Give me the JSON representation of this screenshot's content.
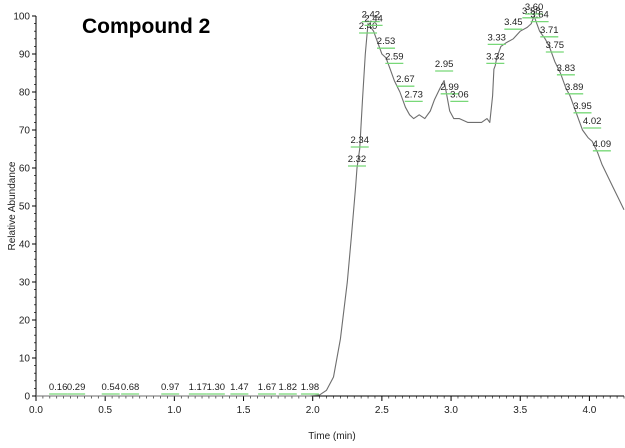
{
  "chart_data": {
    "type": "line",
    "title": "Compound 2",
    "xlabel": "Time (min)",
    "ylabel": "Relative Abundance",
    "xlim": [
      0,
      4.25
    ],
    "ylim": [
      0,
      100
    ],
    "x_ticks": [
      "0.0",
      "0.5",
      "1.0",
      "1.5",
      "2.0",
      "2.5",
      "3.0",
      "3.5",
      "4.0"
    ],
    "y_ticks": [
      "0",
      "10",
      "20",
      "30",
      "40",
      "50",
      "60",
      "70",
      "80",
      "90",
      "100"
    ],
    "grid": false,
    "legend": false,
    "series": [
      {
        "color": "#6e6e6e",
        "points": [
          [
            0,
            0
          ],
          [
            0.16,
            0
          ],
          [
            0.29,
            0
          ],
          [
            0.54,
            0
          ],
          [
            0.68,
            0
          ],
          [
            0.97,
            0
          ],
          [
            1.17,
            0
          ],
          [
            1.3,
            0
          ],
          [
            1.47,
            0
          ],
          [
            1.67,
            0
          ],
          [
            1.82,
            0
          ],
          [
            1.98,
            0
          ],
          [
            2.05,
            0.3
          ],
          [
            2.1,
            1.5
          ],
          [
            2.15,
            5
          ],
          [
            2.2,
            15
          ],
          [
            2.25,
            30
          ],
          [
            2.28,
            42
          ],
          [
            2.31,
            55
          ],
          [
            2.32,
            60
          ],
          [
            2.34,
            65
          ],
          [
            2.36,
            78
          ],
          [
            2.38,
            90
          ],
          [
            2.4,
            98
          ],
          [
            2.42,
            97
          ],
          [
            2.44,
            96
          ],
          [
            2.47,
            93
          ],
          [
            2.5,
            90
          ],
          [
            2.53,
            89
          ],
          [
            2.56,
            86
          ],
          [
            2.59,
            83
          ],
          [
            2.63,
            80
          ],
          [
            2.67,
            76
          ],
          [
            2.7,
            74
          ],
          [
            2.73,
            73
          ],
          [
            2.77,
            74
          ],
          [
            2.81,
            73
          ],
          [
            2.85,
            75
          ],
          [
            2.88,
            78
          ],
          [
            2.92,
            81
          ],
          [
            2.95,
            83
          ],
          [
            2.97,
            79
          ],
          [
            2.99,
            75
          ],
          [
            3.02,
            73
          ],
          [
            3.06,
            73
          ],
          [
            3.12,
            72
          ],
          [
            3.18,
            72
          ],
          [
            3.22,
            72
          ],
          [
            3.26,
            73
          ],
          [
            3.28,
            72
          ],
          [
            3.3,
            79
          ],
          [
            3.31,
            86
          ],
          [
            3.32,
            87
          ],
          [
            3.33,
            89
          ],
          [
            3.36,
            92
          ],
          [
            3.4,
            93
          ],
          [
            3.45,
            94
          ],
          [
            3.5,
            96
          ],
          [
            3.55,
            97
          ],
          [
            3.58,
            98
          ],
          [
            3.6,
            100
          ],
          [
            3.62,
            98
          ],
          [
            3.64,
            96
          ],
          [
            3.68,
            94
          ],
          [
            3.71,
            92
          ],
          [
            3.75,
            88
          ],
          [
            3.79,
            85
          ],
          [
            3.83,
            81
          ],
          [
            3.86,
            79
          ],
          [
            3.89,
            76
          ],
          [
            3.92,
            73
          ],
          [
            3.95,
            70
          ],
          [
            3.99,
            68
          ],
          [
            4.02,
            67
          ],
          [
            4.06,
            64
          ],
          [
            4.09,
            61
          ],
          [
            4.13,
            58
          ],
          [
            4.17,
            55
          ],
          [
            4.21,
            52
          ],
          [
            4.25,
            49
          ]
        ]
      }
    ],
    "peak_labels": [
      {
        "text": "0.16",
        "x": 0.16,
        "y": 0
      },
      {
        "text": "0.29",
        "x": 0.29,
        "y": 0
      },
      {
        "text": "0.54",
        "x": 0.54,
        "y": 0
      },
      {
        "text": "0.68",
        "x": 0.68,
        "y": 0
      },
      {
        "text": "0.97",
        "x": 0.97,
        "y": 0
      },
      {
        "text": "1.17",
        "x": 1.17,
        "y": 0
      },
      {
        "text": "1.30",
        "x": 1.3,
        "y": 0
      },
      {
        "text": "1.47",
        "x": 1.47,
        "y": 0
      },
      {
        "text": "1.67",
        "x": 1.67,
        "y": 0
      },
      {
        "text": "1.82",
        "x": 1.82,
        "y": 0
      },
      {
        "text": "1.98",
        "x": 1.98,
        "y": 0
      },
      {
        "text": "2.32",
        "x": 2.32,
        "y": 60
      },
      {
        "text": "2.34",
        "x": 2.34,
        "y": 65
      },
      {
        "text": "2.40",
        "x": 2.4,
        "y": 95
      },
      {
        "text": "2.42",
        "x": 2.42,
        "y": 98
      },
      {
        "text": "2.44",
        "x": 2.44,
        "y": 97
      },
      {
        "text": "2.53",
        "x": 2.53,
        "y": 91
      },
      {
        "text": "2.59",
        "x": 2.59,
        "y": 87
      },
      {
        "text": "2.67",
        "x": 2.67,
        "y": 81
      },
      {
        "text": "2.73",
        "x": 2.73,
        "y": 77
      },
      {
        "text": "2.95",
        "x": 2.95,
        "y": 85
      },
      {
        "text": "2.99",
        "x": 2.99,
        "y": 79
      },
      {
        "text": "3.06",
        "x": 3.06,
        "y": 77
      },
      {
        "text": "3.32",
        "x": 3.32,
        "y": 87
      },
      {
        "text": "3.33",
        "x": 3.33,
        "y": 92
      },
      {
        "text": "3.45",
        "x": 3.45,
        "y": 96
      },
      {
        "text": "3.58",
        "x": 3.58,
        "y": 99
      },
      {
        "text": "3.60",
        "x": 3.6,
        "y": 100
      },
      {
        "text": "3.64",
        "x": 3.64,
        "y": 98
      },
      {
        "text": "3.71",
        "x": 3.71,
        "y": 94
      },
      {
        "text": "3.75",
        "x": 3.75,
        "y": 90
      },
      {
        "text": "3.83",
        "x": 3.83,
        "y": 84
      },
      {
        "text": "3.89",
        "x": 3.89,
        "y": 79
      },
      {
        "text": "3.95",
        "x": 3.95,
        "y": 74
      },
      {
        "text": "4.02",
        "x": 4.02,
        "y": 70
      },
      {
        "text": "4.09",
        "x": 4.09,
        "y": 64
      }
    ],
    "marker_color": "#78d878"
  }
}
